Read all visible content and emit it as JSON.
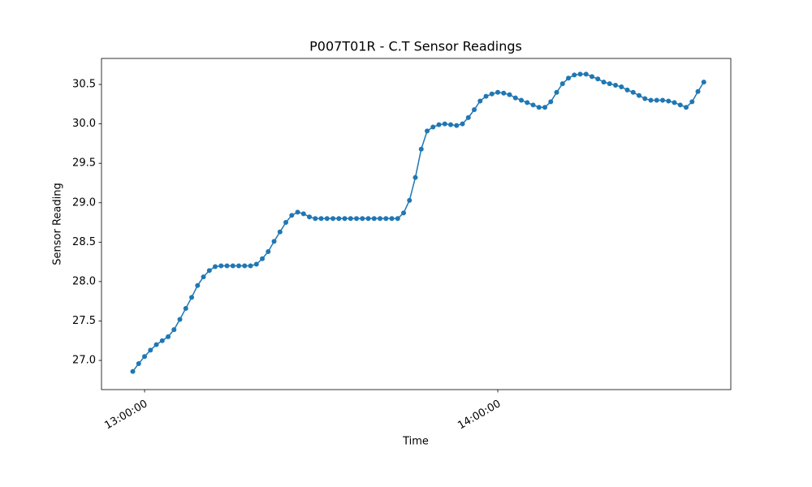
{
  "chart_data": {
    "type": "line",
    "title": "P007T01R - C.T Sensor Readings",
    "x_label": "Time",
    "y_label": "Sensor Reading",
    "x": [
      "12:58:00",
      "12:59:00",
      "13:00:00",
      "13:01:00",
      "13:02:00",
      "13:03:00",
      "13:04:00",
      "13:05:00",
      "13:06:00",
      "13:07:00",
      "13:08:00",
      "13:09:00",
      "13:10:00",
      "13:11:00",
      "13:12:00",
      "13:13:00",
      "13:14:00",
      "13:15:00",
      "13:16:00",
      "13:17:00",
      "13:18:00",
      "13:19:00",
      "13:20:00",
      "13:21:00",
      "13:22:00",
      "13:23:00",
      "13:24:00",
      "13:25:00",
      "13:26:00",
      "13:27:00",
      "13:28:00",
      "13:29:00",
      "13:30:00",
      "13:31:00",
      "13:32:00",
      "13:33:00",
      "13:34:00",
      "13:35:00",
      "13:36:00",
      "13:37:00",
      "13:38:00",
      "13:39:00",
      "13:40:00",
      "13:41:00",
      "13:42:00",
      "13:43:00",
      "13:44:00",
      "13:45:00",
      "13:46:00",
      "13:47:00",
      "13:48:00",
      "13:49:00",
      "13:50:00",
      "13:51:00",
      "13:52:00",
      "13:53:00",
      "13:54:00",
      "13:55:00",
      "13:56:00",
      "13:57:00",
      "13:58:00",
      "13:59:00",
      "14:00:00",
      "14:01:00",
      "14:02:00",
      "14:03:00",
      "14:04:00",
      "14:05:00",
      "14:06:00",
      "14:07:00",
      "14:08:00",
      "14:09:00",
      "14:10:00",
      "14:11:00",
      "14:12:00",
      "14:13:00",
      "14:14:00",
      "14:15:00",
      "14:16:00",
      "14:17:00",
      "14:18:00",
      "14:19:00",
      "14:20:00",
      "14:21:00",
      "14:22:00",
      "14:23:00",
      "14:24:00",
      "14:25:00",
      "14:26:00",
      "14:27:00",
      "14:28:00",
      "14:29:00",
      "14:30:00",
      "14:31:00",
      "14:32:00",
      "14:33:00",
      "14:34:00",
      "14:35:00"
    ],
    "series": [
      {
        "name": "P007T01R",
        "color": "#1f77b4",
        "values": [
          26.86,
          26.96,
          27.05,
          27.13,
          27.2,
          27.25,
          27.3,
          27.39,
          27.52,
          27.66,
          27.8,
          27.95,
          28.06,
          28.14,
          28.19,
          28.2,
          28.2,
          28.2,
          28.2,
          28.2,
          28.2,
          28.22,
          28.29,
          28.38,
          28.51,
          28.63,
          28.75,
          28.84,
          28.88,
          28.86,
          28.82,
          28.8,
          28.8,
          28.8,
          28.8,
          28.8,
          28.8,
          28.8,
          28.8,
          28.8,
          28.8,
          28.8,
          28.8,
          28.8,
          28.8,
          28.8,
          28.87,
          29.03,
          29.32,
          29.68,
          29.91,
          29.96,
          29.99,
          30.0,
          29.99,
          29.98,
          30.0,
          30.08,
          30.18,
          30.29,
          30.35,
          30.38,
          30.4,
          30.39,
          30.37,
          30.33,
          30.3,
          30.27,
          30.24,
          30.21,
          30.21,
          30.28,
          30.4,
          30.51,
          30.58,
          30.62,
          30.63,
          30.63,
          30.6,
          30.57,
          30.53,
          30.51,
          30.49,
          30.47,
          30.43,
          30.4,
          30.36,
          30.32,
          30.3,
          30.3,
          30.3,
          30.29,
          30.27,
          30.24,
          30.21,
          30.28,
          30.41,
          30.53
        ]
      }
    ],
    "xlim": [
      "12:52:41",
      "14:39:35"
    ],
    "xticks": [
      "13:00:00",
      "14:00:00"
    ],
    "ylim": [
      26.63,
      30.83
    ],
    "yticks": [
      {
        "value": 27.0,
        "label": "27.0"
      },
      27.5,
      {
        "value": 28.0,
        "label": "28.0"
      },
      28.5,
      {
        "value": 29.0,
        "label": "29.0"
      },
      29.5,
      {
        "value": 30.0,
        "label": "30.0"
      },
      30.5
    ],
    "grid": false,
    "markers": true
  }
}
